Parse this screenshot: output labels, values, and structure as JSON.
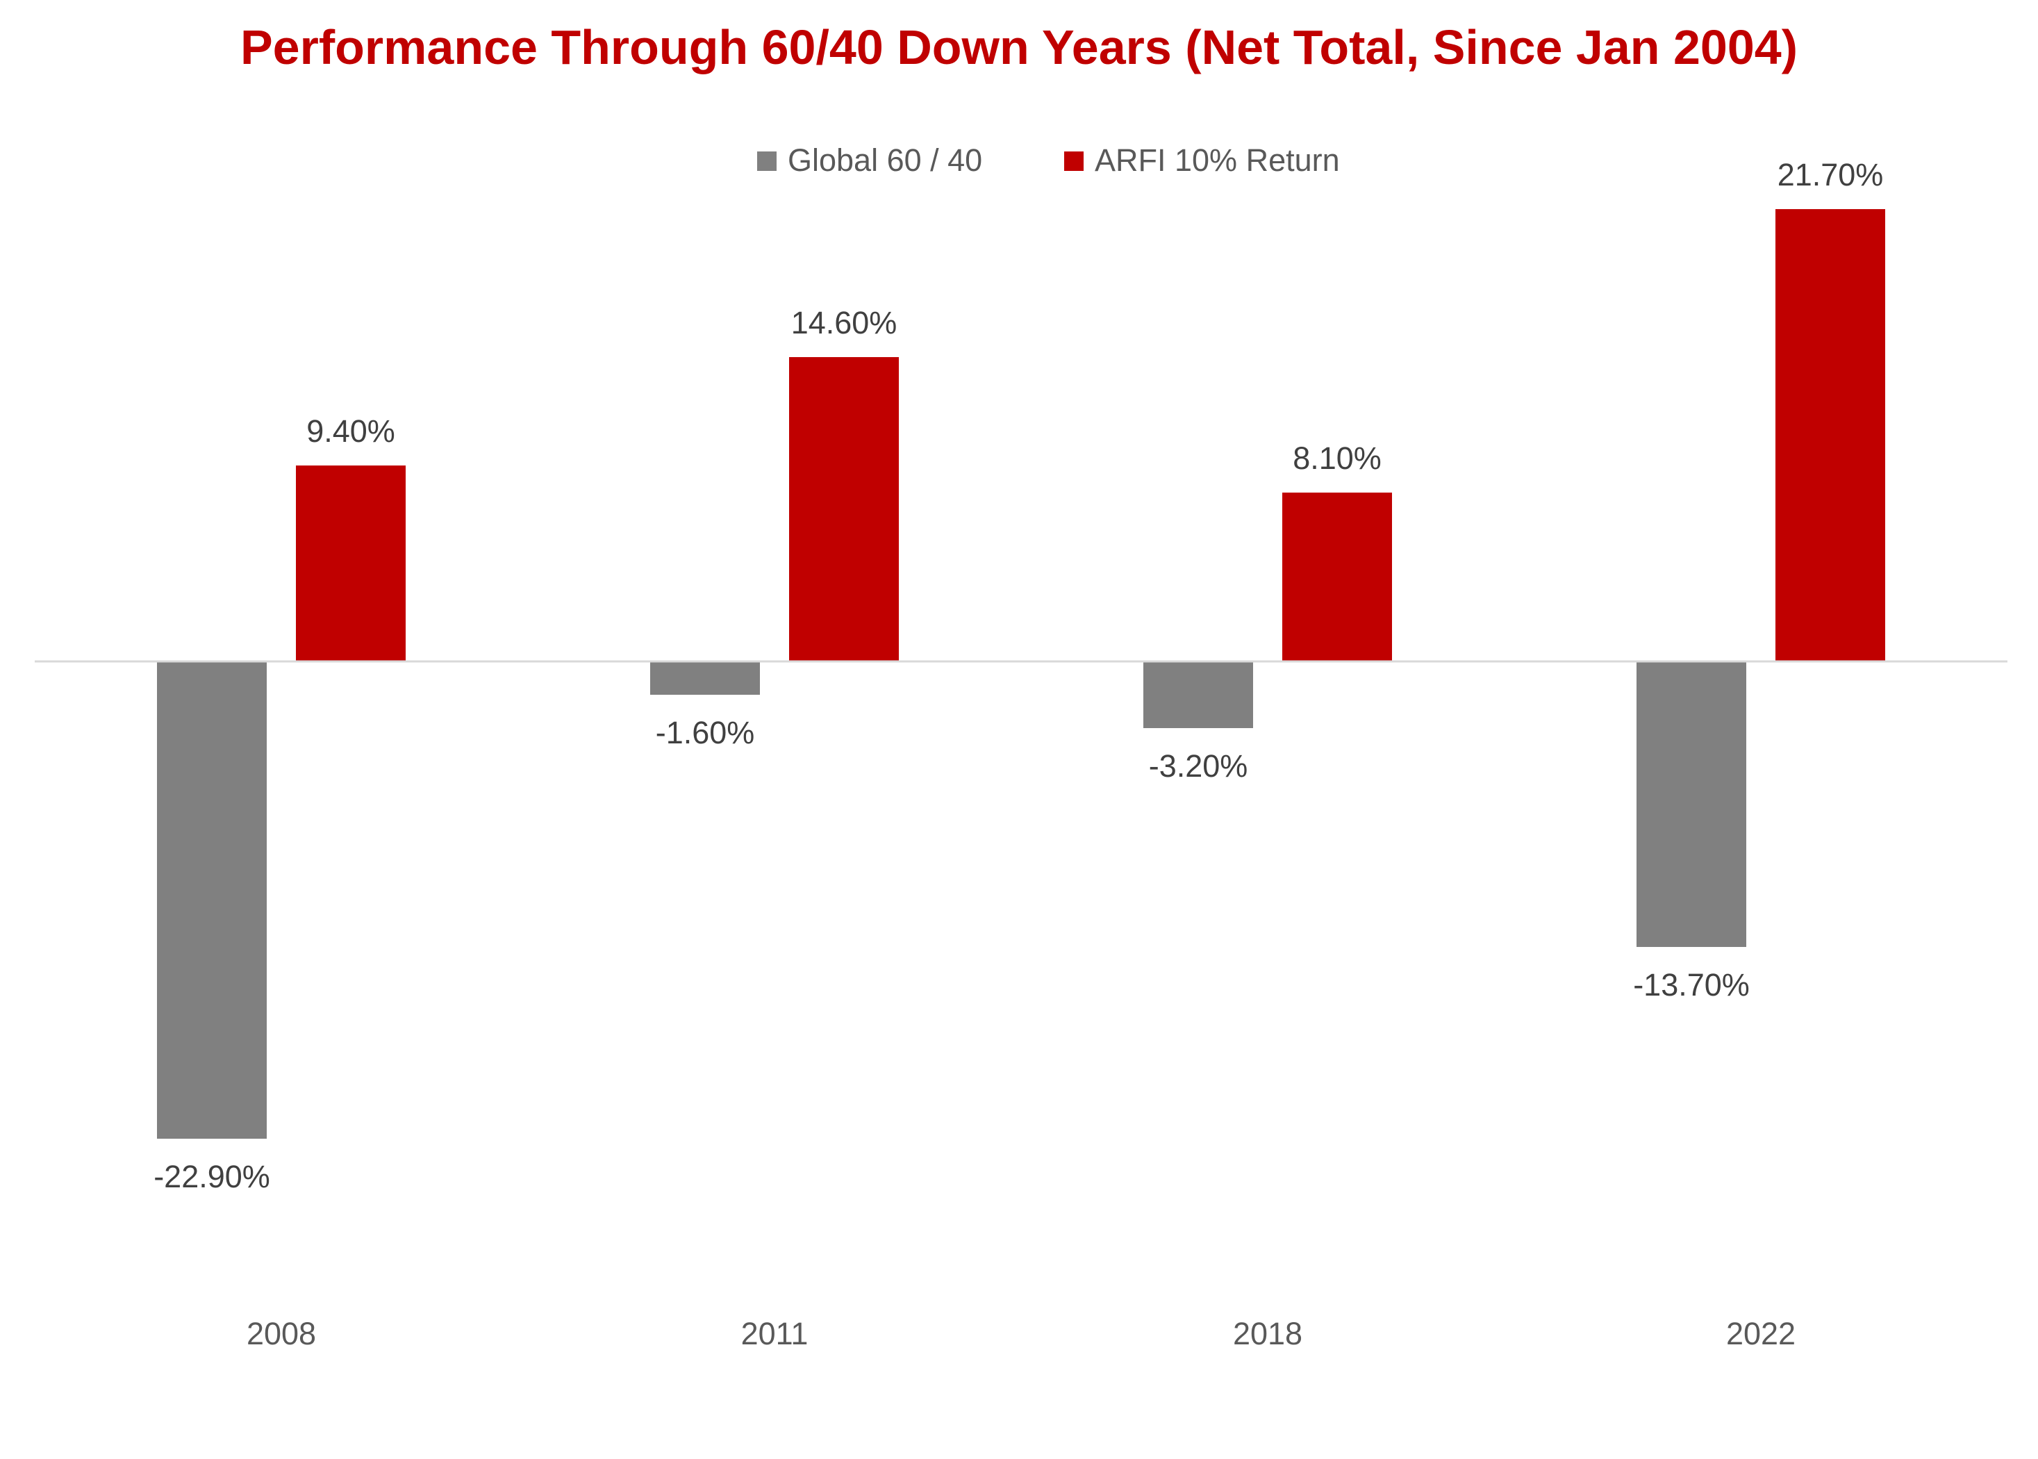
{
  "chart_data": {
    "type": "bar",
    "title": "Performance Through 60/40 Down Years (Net Total, Since Jan 2004)",
    "categories": [
      "2008",
      "2011",
      "2018",
      "2022"
    ],
    "series": [
      {
        "name": "Global 60 / 40",
        "color": "#808080",
        "values": [
          -22.9,
          -1.6,
          -3.2,
          -13.7
        ],
        "labels": [
          "-22.90%",
          "-1.60%",
          "-3.20%",
          "-13.70%"
        ]
      },
      {
        "name": "ARFI 10% Return",
        "color": "#C00000",
        "values": [
          9.4,
          14.6,
          8.1,
          21.7
        ],
        "labels": [
          "9.40%",
          "14.60%",
          "8.10%",
          "21.70%"
        ]
      }
    ],
    "ylim": [
      -30,
      25
    ],
    "legend_position": "top-center",
    "title_color": "#C00000",
    "grid": false
  }
}
